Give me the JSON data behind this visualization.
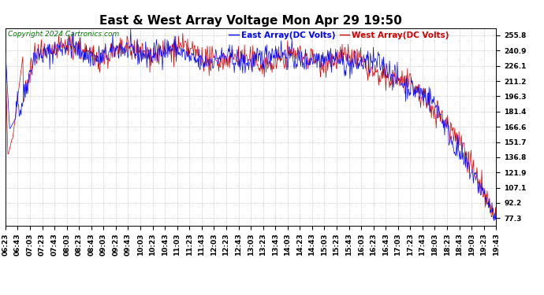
{
  "title": "East & West Array Voltage Mon Apr 29 19:50",
  "legend_east": "East Array(DC Volts)",
  "legend_west": "West Array(DC Volts)",
  "copyright": "Copyright 2024 Cartronics.com",
  "east_color": "#0000ff",
  "west_color": "#cc0000",
  "background_color": "#ffffff",
  "grid_color": "#aaaaaa",
  "yticks": [
    77.3,
    92.2,
    107.1,
    121.9,
    136.8,
    151.7,
    166.6,
    181.4,
    196.3,
    211.2,
    226.1,
    240.9,
    255.8
  ],
  "ymin": 70.0,
  "ymax": 263.0,
  "xtick_labels": [
    "06:23",
    "06:43",
    "07:03",
    "07:23",
    "07:43",
    "08:03",
    "08:23",
    "08:43",
    "09:03",
    "09:23",
    "09:43",
    "10:03",
    "10:23",
    "10:43",
    "11:03",
    "11:23",
    "11:43",
    "12:03",
    "12:23",
    "12:43",
    "13:03",
    "13:23",
    "13:43",
    "14:03",
    "14:23",
    "14:43",
    "15:03",
    "15:23",
    "15:43",
    "16:03",
    "16:23",
    "16:43",
    "17:03",
    "17:23",
    "17:43",
    "18:03",
    "18:23",
    "18:43",
    "19:03",
    "19:23",
    "19:43"
  ],
  "title_fontsize": 11,
  "legend_fontsize": 7.5,
  "tick_fontsize": 6.5,
  "copyright_fontsize": 6.5
}
